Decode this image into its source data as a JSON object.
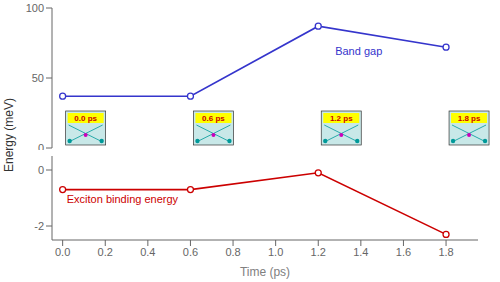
{
  "chart_data": [
    {
      "type": "line",
      "x": [
        0.0,
        0.6,
        1.2,
        1.8
      ],
      "series": [
        {
          "color": "#3535cc",
          "values": [
            37,
            37,
            87,
            72
          ],
          "marker": "circle"
        }
      ],
      "xlim": [
        -0.05,
        1.95
      ],
      "ylim": [
        0,
        100
      ],
      "yticks": [
        0,
        50,
        100
      ],
      "tick_labels": "y",
      "ylabel": "Energy (meV)",
      "annotations": [
        {
          "text": "Band gap",
          "x": 1.27,
          "y": 69,
          "color": "#3535cc"
        }
      ],
      "inset_labels": [
        "0.0 ps",
        "0.6 ps",
        "1.2 ps",
        "1.8 ps"
      ]
    },
    {
      "type": "line",
      "x": [
        0.0,
        0.6,
        1.2,
        1.8
      ],
      "series": [
        {
          "color": "#cc0000",
          "values": [
            -0.7,
            -0.7,
            -0.1,
            -2.3
          ],
          "marker": "circle"
        }
      ],
      "xlim": [
        -0.05,
        1.95
      ],
      "ylim": [
        -2.5,
        0.5
      ],
      "yticks": [
        -2,
        0
      ],
      "xticks": [
        {
          "value": 0,
          "label": "0.0"
        },
        0.2,
        0.4,
        0.6,
        0.8,
        {
          "value": 1.0,
          "label": "1.0"
        },
        1.2,
        1.4,
        1.6,
        1.8
      ],
      "xlabel": "Time (ps)",
      "annotations": [
        {
          "text": "Exciton binding energy",
          "x": 0.01,
          "y": -1.05,
          "color": "#cc0000"
        }
      ]
    }
  ]
}
